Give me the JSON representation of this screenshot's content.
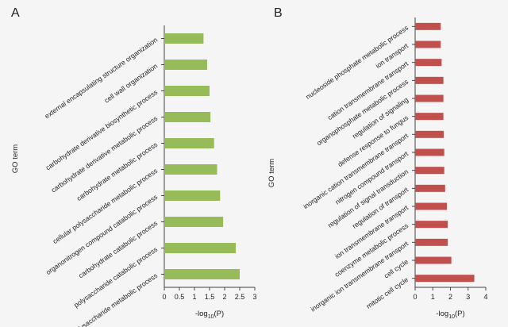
{
  "chart_data": [
    {
      "type": "bar",
      "orientation": "horizontal",
      "panel_label": "A",
      "categories": [
        "external encapsulating structure organization",
        "cell wall organization",
        "carbohydrate derivative biosynthetic process",
        "carbohydrate derivative metabolic process",
        "carbohydrate metabolic process",
        "cellular polysaccharide metabolic process",
        "organonitrogen compound catabolic process",
        "carbohydrate catabolic process",
        "polysaccharide catabolic process",
        "polysaccharide metabolic process"
      ],
      "values": [
        1.3,
        1.42,
        1.5,
        1.53,
        1.65,
        1.75,
        1.85,
        1.95,
        2.37,
        2.5
      ],
      "xlabel_main": "-log",
      "xlabel_sub": "10",
      "xlabel_tail": "(P)",
      "ylabel": "GO term",
      "xlim": [
        0,
        3
      ],
      "xticks": [
        "0",
        "0.5",
        "1",
        "1.5",
        "2",
        "2.5",
        "3"
      ],
      "color": "#97bb59",
      "grid": false
    },
    {
      "type": "bar",
      "orientation": "horizontal",
      "panel_label": "B",
      "categories": [
        "nucleoside phosphate metabolic process",
        "ion transport",
        "cation transmembrane transport",
        "organophosphate metabolic process",
        "regulation of signaling",
        "defense response to fungus",
        "inorganic cation transmembrane transport",
        "nitrogen compound transport",
        "regulation of signal transduction",
        "regulation of transport",
        "ion transmembrane transport",
        "coenzyme metabolic process",
        "inorganic ion transmembrane transport",
        "cell cycle",
        "mitotic cell cycle"
      ],
      "values": [
        1.45,
        1.45,
        1.5,
        1.6,
        1.6,
        1.6,
        1.62,
        1.65,
        1.65,
        1.7,
        1.8,
        1.85,
        1.85,
        2.05,
        3.35
      ],
      "xlabel_main": "-log",
      "xlabel_sub": "10",
      "xlabel_tail": "(P)",
      "ylabel": "GO term",
      "xlim": [
        0,
        4
      ],
      "xticks": [
        "0",
        "1",
        "2",
        "3",
        "4"
      ],
      "color": "#c0504d",
      "grid": false
    }
  ]
}
